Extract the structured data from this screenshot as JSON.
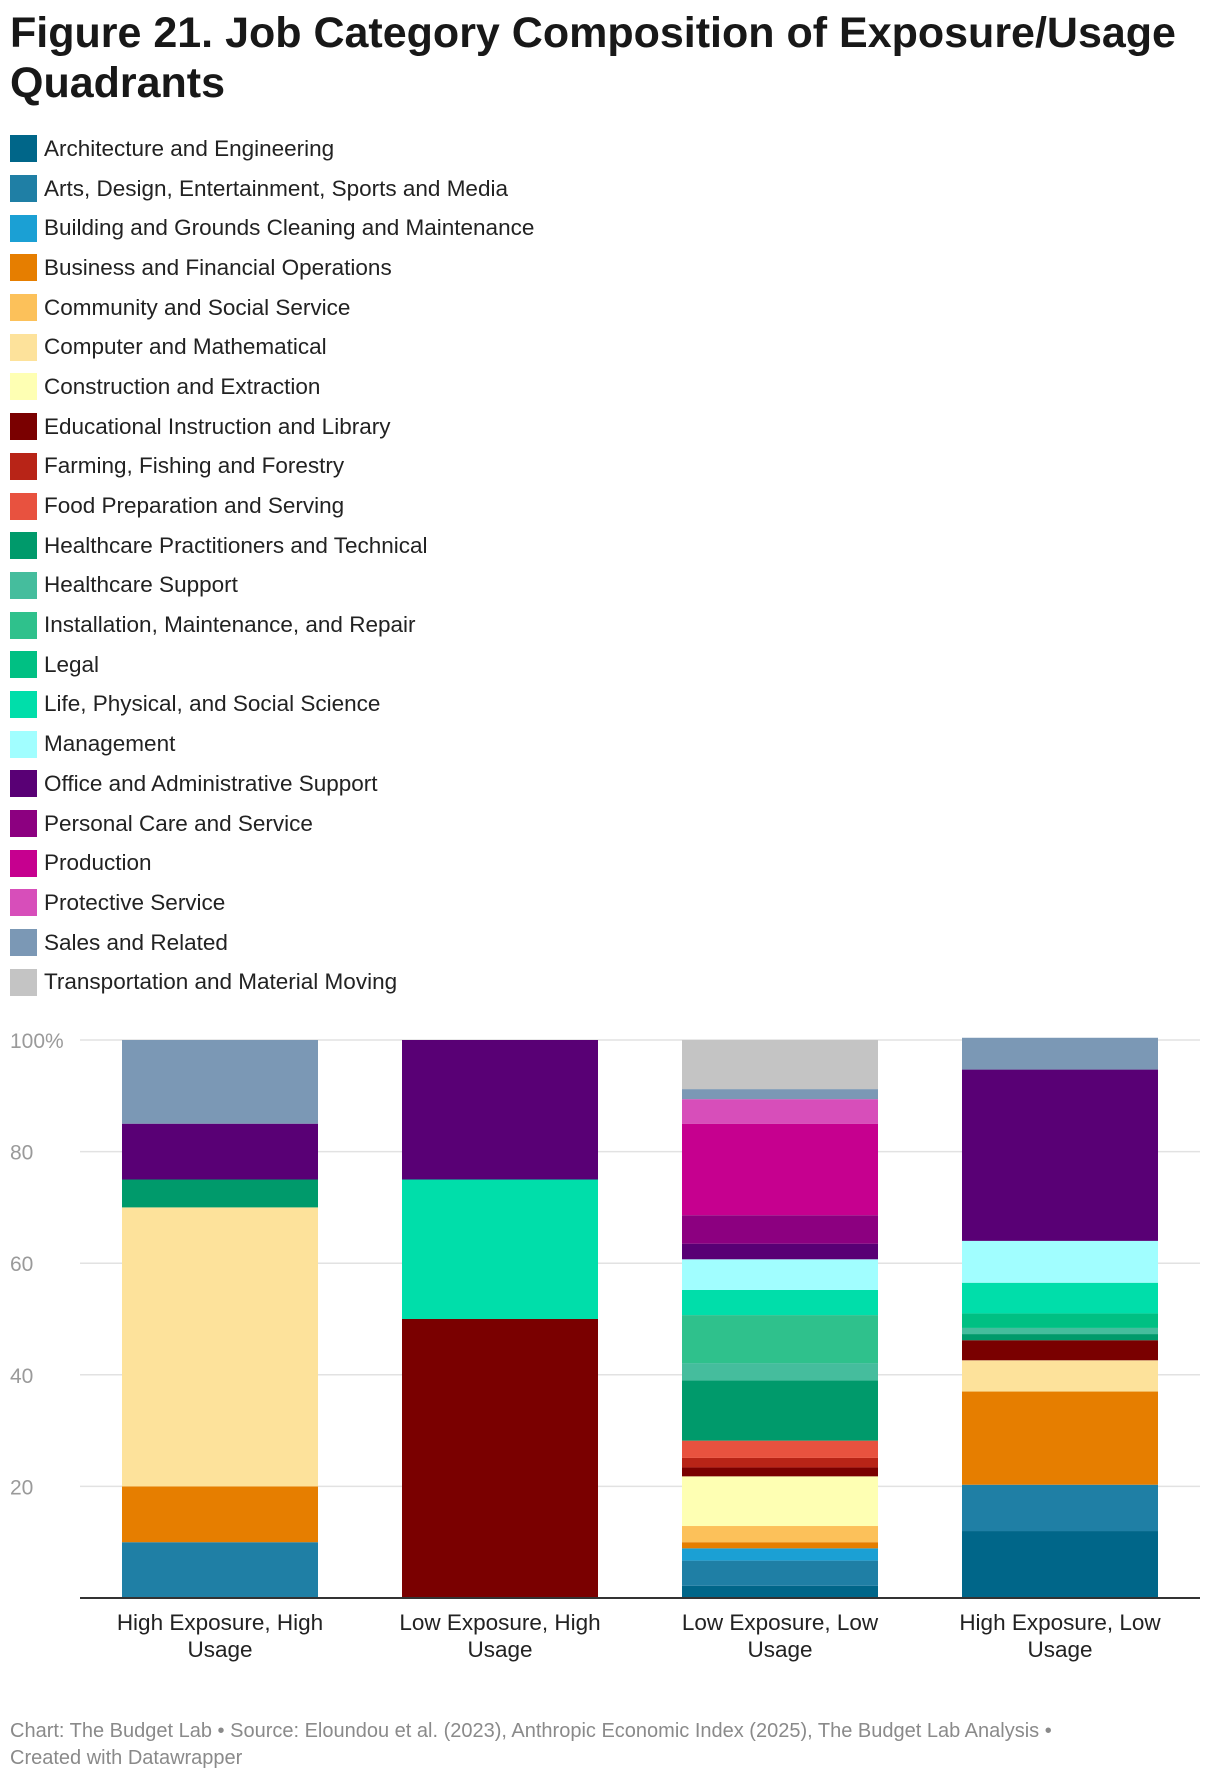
{
  "title": "Figure 21. Job Category Composition of Exposure/Usage Quadrants",
  "footer": {
    "line1": "Chart: The Budget Lab • Source: Eloundou et al. (2023), Anthropic Economic Index (2025), The Budget Lab Analysis •",
    "line2": "Created with Datawrapper"
  },
  "chart_data": {
    "type": "bar",
    "stacked": true,
    "title": "Figure 21. Job Category Composition of Exposure/Usage Quadrants",
    "xlabel": "",
    "ylabel": "",
    "ylim": [
      0,
      100
    ],
    "y_ticks": [
      20,
      40,
      60,
      80,
      100
    ],
    "y_tick_labels": [
      "20",
      "40",
      "60",
      "80",
      "100%"
    ],
    "legend_position": "top",
    "grid": true,
    "categories": [
      [
        "High Exposure, High",
        "Usage"
      ],
      [
        "Low Exposure, High",
        "Usage"
      ],
      [
        "Low Exposure, Low",
        "Usage"
      ],
      [
        "High Exposure, Low",
        "Usage"
      ]
    ],
    "series": [
      {
        "name": "Architecture and Engineering",
        "color": "#006689",
        "values": [
          0,
          0,
          2.2,
          12
        ]
      },
      {
        "name": "Arts, Design, Entertainment, Sports and Media",
        "color": "#1f7fa5",
        "values": [
          10,
          0,
          4.5,
          8.3
        ]
      },
      {
        "name": "Building and Grounds Cleaning and Maintenance",
        "color": "#1ba0d4",
        "values": [
          0,
          0,
          2.2,
          0
        ]
      },
      {
        "name": "Business and Financial Operations",
        "color": "#e67e00",
        "values": [
          10,
          0,
          1.1,
          16.7
        ]
      },
      {
        "name": "Community and Social Service",
        "color": "#fcc15a",
        "values": [
          0,
          0,
          2.9,
          0
        ]
      },
      {
        "name": "Computer and Mathematical",
        "color": "#fde29b",
        "values": [
          50,
          0,
          0,
          5.6
        ]
      },
      {
        "name": "Construction and Extraction",
        "color": "#feffb3",
        "values": [
          0,
          0,
          8.9,
          0
        ]
      },
      {
        "name": "Educational Instruction and Library",
        "color": "#7a0000",
        "values": [
          0,
          50,
          1.6,
          3.6
        ]
      },
      {
        "name": "Farming, Fishing and Forestry",
        "color": "#b82417",
        "values": [
          0,
          0,
          1.7,
          0
        ]
      },
      {
        "name": "Food Preparation and Serving",
        "color": "#e8523f",
        "values": [
          0,
          0,
          3.1,
          0
        ]
      },
      {
        "name": "Healthcare Practitioners and Technical",
        "color": "#009a6b",
        "values": [
          5,
          0,
          10.8,
          1.1
        ]
      },
      {
        "name": "Healthcare Support",
        "color": "#45bd9d",
        "values": [
          0,
          0,
          3.1,
          1.1
        ]
      },
      {
        "name": "Installation, Maintenance, and Repair",
        "color": "#2fc18c",
        "values": [
          0,
          0,
          8.6,
          0
        ]
      },
      {
        "name": "Legal",
        "color": "#00c083",
        "values": [
          0,
          0,
          0,
          2.6
        ]
      },
      {
        "name": "Life, Physical, and Social Science",
        "color": "#00deaa",
        "values": [
          0,
          25,
          4.5,
          5.5
        ]
      },
      {
        "name": "Management",
        "color": "#a1feff",
        "values": [
          0,
          0,
          5.5,
          7.5
        ]
      },
      {
        "name": "Office and Administrative Support",
        "color": "#590075",
        "values": [
          10,
          25,
          2.8,
          30.7
        ]
      },
      {
        "name": "Personal Care and Service",
        "color": "#8c0080",
        "values": [
          0,
          0,
          5.1,
          0
        ]
      },
      {
        "name": "Production",
        "color": "#c6008f",
        "values": [
          0,
          0,
          16.4,
          0
        ]
      },
      {
        "name": "Protective Service",
        "color": "#d74eba",
        "values": [
          0,
          0,
          4.4,
          0
        ]
      },
      {
        "name": "Sales and Related",
        "color": "#7b98b5",
        "values": [
          15,
          0,
          1.8,
          5.7
        ]
      },
      {
        "name": "Transportation and Material Moving",
        "color": "#c4c4c4",
        "values": [
          0,
          0,
          8.8,
          0
        ]
      }
    ]
  }
}
